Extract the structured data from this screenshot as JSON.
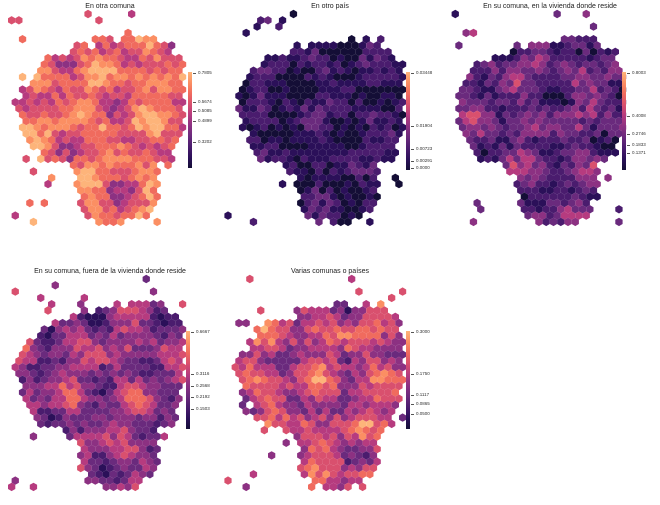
{
  "figure": {
    "panels": [
      {
        "title": "En otra comuna",
        "legend_ticks": [
          "0.7805",
          "0.5674",
          "0.5085",
          "0.4899",
          "0.3202"
        ],
        "legend_max": "0.7805",
        "seed": 11,
        "profile": "high"
      },
      {
        "title": "En otro país",
        "legend_ticks": [
          "0.03448",
          "0.01904",
          "0.00723",
          "0.00291",
          "0.0000"
        ],
        "legend_max": "0.03448",
        "seed": 23,
        "profile": "low"
      },
      {
        "title": "En su comuna, en la vivienda donde reside",
        "legend_ticks": [
          "0.8003",
          "0.4008",
          "0.2746",
          "0.1833",
          "0.1371"
        ],
        "legend_max": "0.8003",
        "seed": 37,
        "profile": "lowmid"
      },
      {
        "title": "En su comuna, fuera de la vivienda donde reside",
        "legend_ticks": [
          "0.6667",
          "0.3116",
          "0.2568",
          "0.2192",
          "0.1503"
        ],
        "legend_max": "0.6667",
        "seed": 51,
        "profile": "mid"
      },
      {
        "title": "Varias comunas o países",
        "legend_ticks": [
          "0.3000",
          "0.1750",
          "0.1117",
          "0.0865",
          "0.0500"
        ],
        "legend_max": "0.3000",
        "seed": 67,
        "profile": "midhigh"
      }
    ],
    "palette": [
      "#140e36",
      "#2b1059",
      "#4a1c6e",
      "#6a2a7d",
      "#8c3182",
      "#b63b7f",
      "#d9506e",
      "#f06b5e",
      "#fb8f63",
      "#fdb47a"
    ],
    "colormap": "magma"
  }
}
